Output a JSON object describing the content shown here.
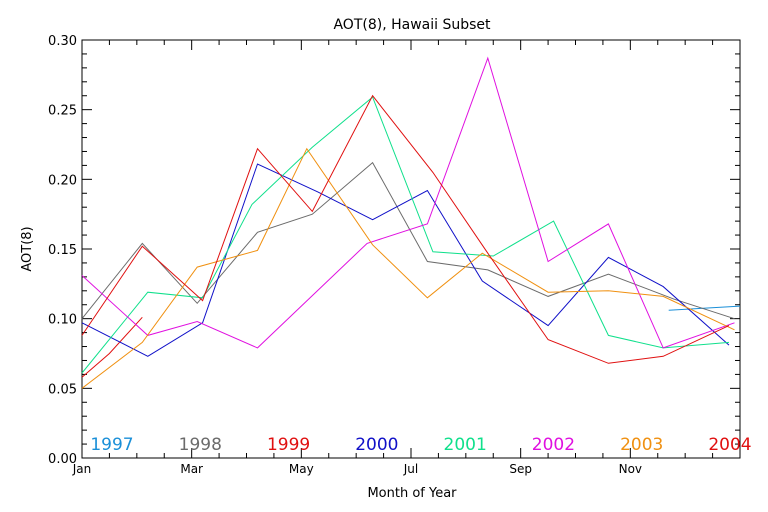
{
  "chart_data": {
    "type": "line",
    "title": "AOT(8), Hawaii Subset",
    "xlabel": "Month of Year",
    "ylabel": "AOT(8)",
    "xlim": [
      1,
      13
    ],
    "ylim": [
      0.0,
      0.3
    ],
    "x_ticks": [
      {
        "value": 1,
        "label": "Jan"
      },
      {
        "value": 3,
        "label": "Mar"
      },
      {
        "value": 5,
        "label": "May"
      },
      {
        "value": 7,
        "label": "Jul"
      },
      {
        "value": 9,
        "label": "Sep"
      },
      {
        "value": 11,
        "label": "Nov"
      }
    ],
    "y_ticks": [
      {
        "value": 0.0,
        "label": "0.00"
      },
      {
        "value": 0.05,
        "label": "0.05"
      },
      {
        "value": 0.1,
        "label": "0.10"
      },
      {
        "value": 0.15,
        "label": "0.15"
      },
      {
        "value": 0.2,
        "label": "0.20"
      },
      {
        "value": 0.25,
        "label": "0.25"
      },
      {
        "value": 0.3,
        "label": "0.30"
      }
    ],
    "grid": false,
    "legend_placement": "bottom, inside plot",
    "series": [
      {
        "name": "1997",
        "color": "#1a8fd8",
        "points": [
          [
            11.7,
            0.106
          ],
          [
            13.0,
            0.109
          ]
        ]
      },
      {
        "name": "1998",
        "color": "#6b6b6b",
        "points": [
          [
            1,
            0.1
          ],
          [
            2.1,
            0.154
          ],
          [
            3.1,
            0.111
          ],
          [
            4.2,
            0.162
          ],
          [
            5.2,
            0.175
          ],
          [
            6.3,
            0.212
          ],
          [
            7.3,
            0.141
          ],
          [
            8.4,
            0.135
          ],
          [
            9.5,
            0.116
          ],
          [
            10.6,
            0.132
          ],
          [
            11.8,
            0.114
          ],
          [
            12.9,
            0.1
          ]
        ]
      },
      {
        "name": "1999",
        "color": "#e01010",
        "points": [
          [
            1,
            0.058
          ],
          [
            1.5,
            0.075
          ],
          [
            2.1,
            0.101
          ]
        ]
      },
      {
        "name": "2000",
        "color": "#1010c8",
        "points": [
          [
            1,
            0.097
          ],
          [
            2.2,
            0.073
          ],
          [
            3.2,
            0.097
          ],
          [
            4.2,
            0.211
          ],
          [
            5.3,
            0.191
          ],
          [
            6.3,
            0.171
          ],
          [
            7.3,
            0.192
          ],
          [
            8.3,
            0.127
          ],
          [
            9.5,
            0.095
          ],
          [
            10.6,
            0.144
          ],
          [
            11.6,
            0.123
          ],
          [
            12.8,
            0.081
          ]
        ]
      },
      {
        "name": "2001",
        "color": "#10e08c",
        "points": [
          [
            1,
            0.061
          ],
          [
            2.2,
            0.119
          ],
          [
            3.2,
            0.115
          ],
          [
            4.1,
            0.182
          ],
          [
            5.2,
            0.223
          ],
          [
            6.3,
            0.259
          ],
          [
            7.4,
            0.148
          ],
          [
            8.5,
            0.145
          ],
          [
            9.6,
            0.17
          ],
          [
            10.6,
            0.088
          ],
          [
            11.6,
            0.079
          ],
          [
            12.8,
            0.083
          ]
        ]
      },
      {
        "name": "2002",
        "color": "#e010e0",
        "points": [
          [
            1,
            0.131
          ],
          [
            2.2,
            0.088
          ],
          [
            3.1,
            0.098
          ],
          [
            4.2,
            0.079
          ],
          [
            6.2,
            0.154
          ],
          [
            7.3,
            0.168
          ],
          [
            8.4,
            0.287
          ],
          [
            9.5,
            0.141
          ],
          [
            10.6,
            0.168
          ],
          [
            11.6,
            0.079
          ],
          [
            12.9,
            0.097
          ]
        ]
      },
      {
        "name": "2003",
        "color": "#f09010",
        "points": [
          [
            1,
            0.05
          ],
          [
            2.1,
            0.083
          ],
          [
            3.1,
            0.137
          ],
          [
            4.2,
            0.149
          ],
          [
            5.1,
            0.222
          ],
          [
            6.3,
            0.153
          ],
          [
            7.3,
            0.115
          ],
          [
            8.3,
            0.147
          ],
          [
            9.5,
            0.119
          ],
          [
            10.6,
            0.12
          ],
          [
            11.6,
            0.116
          ],
          [
            12.9,
            0.092
          ]
        ]
      },
      {
        "name": "2004",
        "color": "#e01010",
        "points": [
          [
            1,
            0.088
          ],
          [
            2.1,
            0.152
          ],
          [
            3.2,
            0.113
          ],
          [
            4.2,
            0.222
          ],
          [
            5.2,
            0.177
          ],
          [
            6.3,
            0.26
          ],
          [
            7.4,
            0.205
          ],
          [
            8.4,
            0.147
          ],
          [
            9.5,
            0.085
          ],
          [
            10.6,
            0.068
          ],
          [
            11.6,
            0.073
          ],
          [
            12.8,
            0.095
          ]
        ]
      }
    ]
  }
}
